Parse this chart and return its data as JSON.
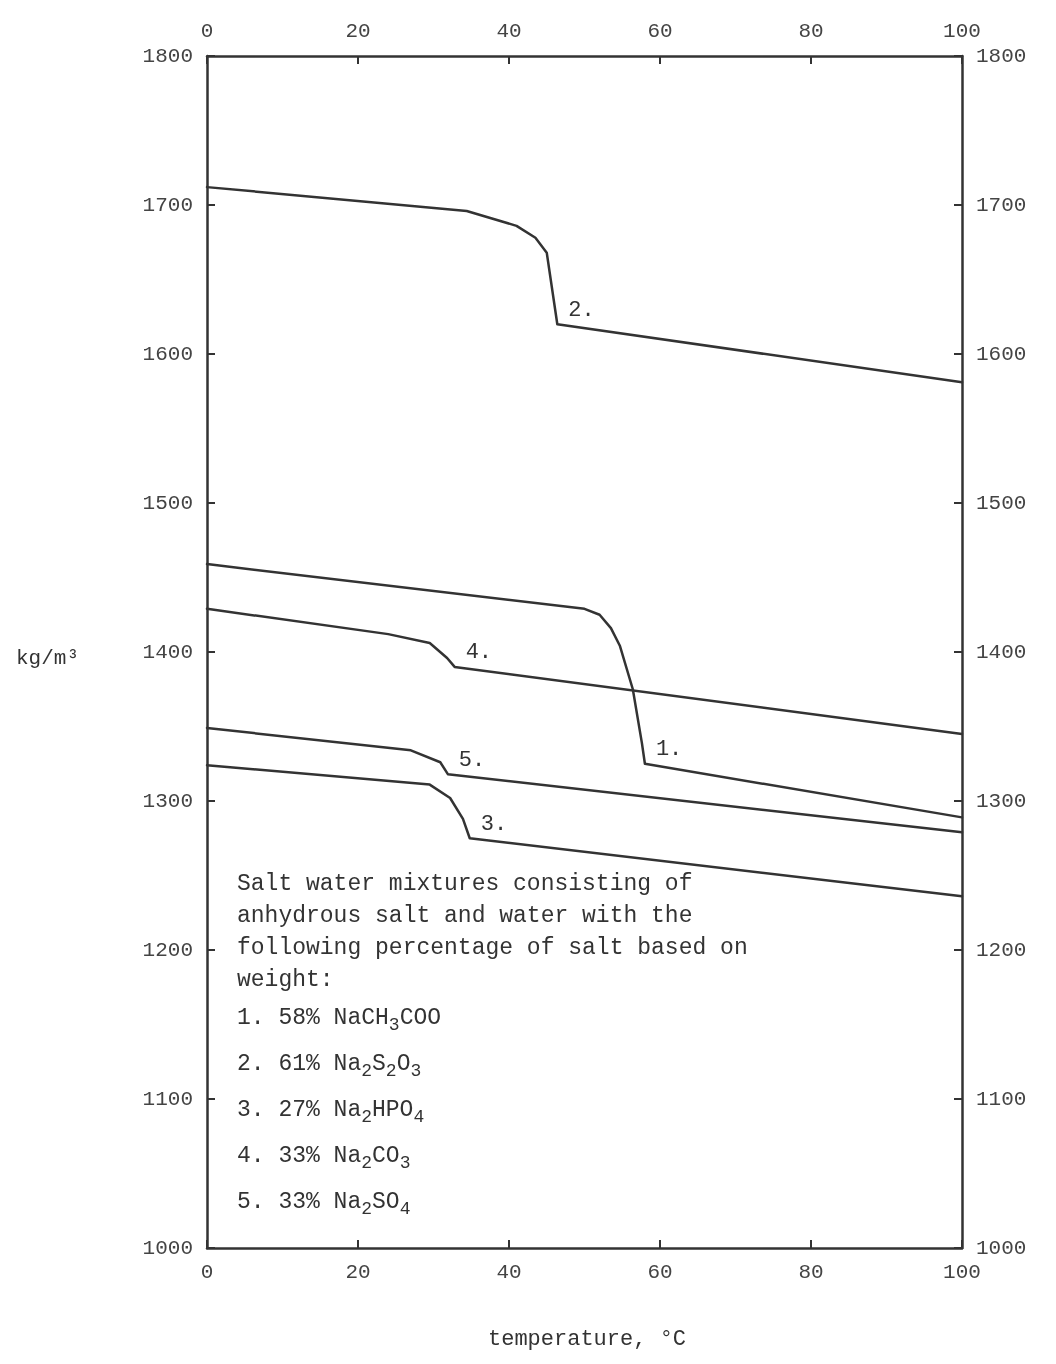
{
  "chart_data": {
    "type": "line",
    "xlabel": "temperature, °C",
    "ylabel": "kg/m³",
    "xlim": [
      0,
      100
    ],
    "xticks": [
      0,
      20,
      40,
      60,
      80,
      100
    ],
    "x2lim": [
      0,
      100
    ],
    "x2ticks": [
      0,
      20,
      40,
      60,
      80,
      100
    ],
    "ylim": [
      1000,
      1800
    ],
    "yticks": [
      1000,
      1100,
      1200,
      1300,
      1400,
      1500,
      1600,
      1700,
      1800
    ],
    "y2lim": [
      1000,
      1800
    ],
    "y2ticks": [
      1000,
      1100,
      1200,
      1300,
      1400,
      1500,
      1600,
      1700,
      1800
    ],
    "grid": false,
    "legend": false,
    "marker": "none",
    "line_style": "solid",
    "series": [
      {
        "name": "1.",
        "color": "#333333",
        "x": [
          0,
          50,
          52,
          53.5,
          54.7,
          56.4,
          57.6,
          58,
          100
        ],
        "values": [
          1459,
          1429,
          1425,
          1416,
          1404,
          1375,
          1339,
          1325,
          1289
        ]
      },
      {
        "name": "2.",
        "color": "#333333",
        "x": [
          0,
          34.4,
          41,
          43.5,
          45,
          46.4,
          100
        ],
        "values": [
          1712,
          1696,
          1686,
          1678,
          1668,
          1620,
          1581
        ]
      },
      {
        "name": "3.",
        "color": "#333333",
        "x": [
          0,
          29.5,
          32.2,
          33.9,
          34.8,
          100
        ],
        "values": [
          1324,
          1311,
          1302,
          1288,
          1275,
          1236
        ]
      },
      {
        "name": "4.",
        "color": "#333333",
        "x": [
          0,
          24,
          29.5,
          31.8,
          32.8,
          100
        ],
        "values": [
          1429,
          1412,
          1406,
          1396,
          1390,
          1345
        ]
      },
      {
        "name": "5.",
        "color": "#333333",
        "x": [
          0,
          27,
          30.9,
          31.9,
          100
        ],
        "values": [
          1349,
          1334,
          1326,
          1318,
          1279
        ]
      }
    ],
    "annotations": [
      "Salt water mixtures consisting of anhydrous salt and water with the following percentage of salt based on weight:",
      "1. 58% NaCH$_{3}$COO",
      "2. 61% Na$_{2}$S$_{2}$O$_{3}$",
      "3. 27% Na$_{2}$HPO$_{4}$",
      "4. 33% Na$_{2}$CO$_{3}$",
      "5. 33% Na$_{2}$SO$_{4}$"
    ]
  }
}
